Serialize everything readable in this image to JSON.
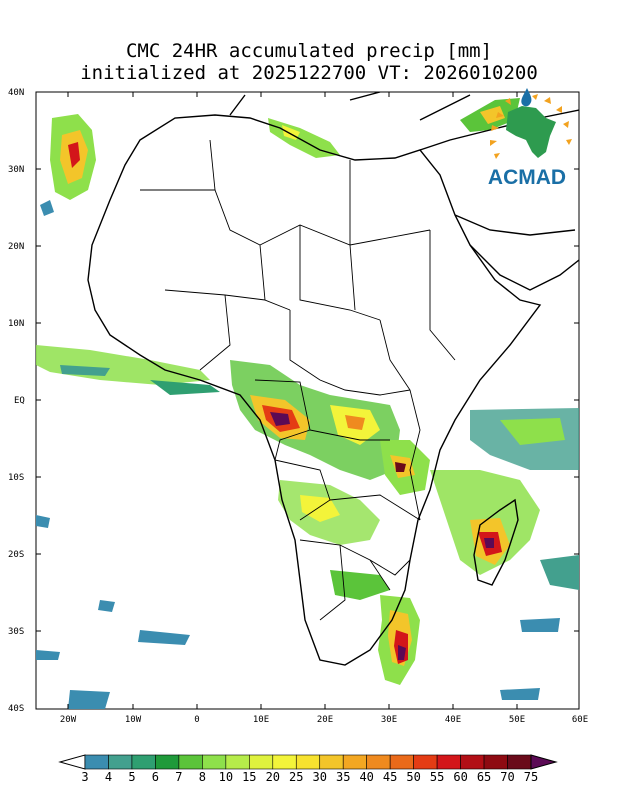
{
  "title": {
    "line1": "CMC 24HR accumulated precip [mm]",
    "line2": "initialized at 2025122700 VT: 2026010200"
  },
  "axes": {
    "lat_labels": [
      "40N",
      "30N",
      "20N",
      "10N",
      "EQ",
      "10S",
      "20S",
      "30S",
      "40S"
    ],
    "lat_values": [
      40,
      30,
      20,
      10,
      0,
      -10,
      -20,
      -30,
      -40
    ],
    "lon_labels": [
      "20W",
      "10W",
      "0",
      "10E",
      "20E",
      "30E",
      "40E",
      "50E",
      "60E"
    ],
    "lon_values": [
      -20,
      -10,
      0,
      10,
      20,
      30,
      40,
      50,
      60
    ],
    "lon_range": [
      -25,
      60
    ],
    "lat_range": [
      -40,
      40
    ]
  },
  "colorbar": {
    "labels": [
      "3",
      "4",
      "5",
      "6",
      "7",
      "8",
      "10",
      "15",
      "20",
      "25",
      "30",
      "35",
      "40",
      "45",
      "50",
      "55",
      "60",
      "65",
      "70",
      "75"
    ],
    "colors": [
      "#3b8db0",
      "#43a08e",
      "#2f9f71",
      "#1f9a3a",
      "#5bc43a",
      "#8ee04b",
      "#b6ec4a",
      "#dff23e",
      "#f3f43a",
      "#f7e22f",
      "#f3c52a",
      "#f3a722",
      "#ef8a1f",
      "#ea6a1a",
      "#e43c14",
      "#d3161a",
      "#b20f16",
      "#8e0a12",
      "#6a0a1a",
      "#5b0a55"
    ]
  },
  "logo": {
    "text": "ACMAD",
    "text_color": "#1a6fa6",
    "continent_color": "#2e9b4f",
    "ray_color": "#f2a21f",
    "drop_color": "#1a6fa6"
  }
}
